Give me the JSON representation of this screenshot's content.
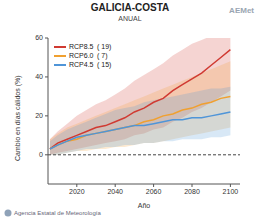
{
  "chart_data": {
    "type": "line",
    "title": "GALICIA-COSTA",
    "subtitle": "ANUAL",
    "x_label": "Año",
    "y_label": "Cambio en días cálidos (%)",
    "logo": "AEMet",
    "footer": "Agencia Estatal de Meteorología",
    "x": [
      2006,
      2010,
      2015,
      2020,
      2025,
      2030,
      2035,
      2040,
      2045,
      2050,
      2055,
      2060,
      2065,
      2070,
      2075,
      2080,
      2085,
      2090,
      2095,
      2100
    ],
    "xlim": [
      2005,
      2105
    ],
    "xticks": [
      2020,
      2040,
      2060,
      2080,
      2100
    ],
    "ylim": [
      -15,
      60
    ],
    "yticks": [
      0,
      20,
      40,
      60
    ],
    "zero_line": 0,
    "grid": false,
    "legend": "upper left",
    "series": [
      {
        "name": "RCP8.5",
        "note": "( 19)",
        "color": "#d03a32",
        "values": [
          3,
          6,
          8,
          10,
          12,
          14,
          15,
          17,
          19,
          22,
          24,
          27,
          29,
          33,
          36,
          39,
          42,
          46,
          50,
          54
        ],
        "low": [
          0,
          1,
          2,
          3,
          4,
          5,
          6,
          7,
          8,
          10,
          11,
          13,
          14,
          17,
          19,
          22,
          24,
          27,
          30,
          33
        ],
        "high": [
          8,
          12,
          16,
          20,
          23,
          26,
          28,
          31,
          34,
          38,
          41,
          44,
          47,
          51,
          54,
          57,
          59,
          61,
          62,
          63
        ]
      },
      {
        "name": "RCP6.0",
        "note": "( 7)",
        "color": "#f0a030",
        "values": [
          3,
          5,
          7,
          8,
          10,
          11,
          12,
          13,
          14,
          15,
          17,
          18,
          20,
          21,
          23,
          24,
          26,
          27,
          29,
          30
        ],
        "low": [
          0,
          0,
          1,
          2,
          2,
          3,
          3,
          4,
          4,
          5,
          6,
          6,
          7,
          8,
          9,
          10,
          11,
          12,
          13,
          14
        ],
        "high": [
          8,
          11,
          14,
          16,
          18,
          20,
          22,
          24,
          26,
          28,
          30,
          32,
          34,
          36,
          38,
          40,
          42,
          44,
          46,
          48
        ]
      },
      {
        "name": "RCP4.5",
        "note": "( 15)",
        "color": "#4f95d8",
        "values": [
          3,
          5,
          7,
          9,
          10,
          11,
          12,
          13,
          14,
          15,
          15,
          16,
          17,
          18,
          18,
          19,
          19,
          20,
          21,
          22
        ],
        "low": [
          0,
          0,
          1,
          2,
          3,
          3,
          4,
          4,
          5,
          5,
          6,
          6,
          7,
          7,
          8,
          8,
          8,
          9,
          9,
          10
        ],
        "high": [
          7,
          10,
          13,
          15,
          17,
          19,
          21,
          23,
          24,
          25,
          27,
          28,
          29,
          30,
          31,
          32,
          33,
          34,
          34,
          35
        ]
      }
    ]
  }
}
